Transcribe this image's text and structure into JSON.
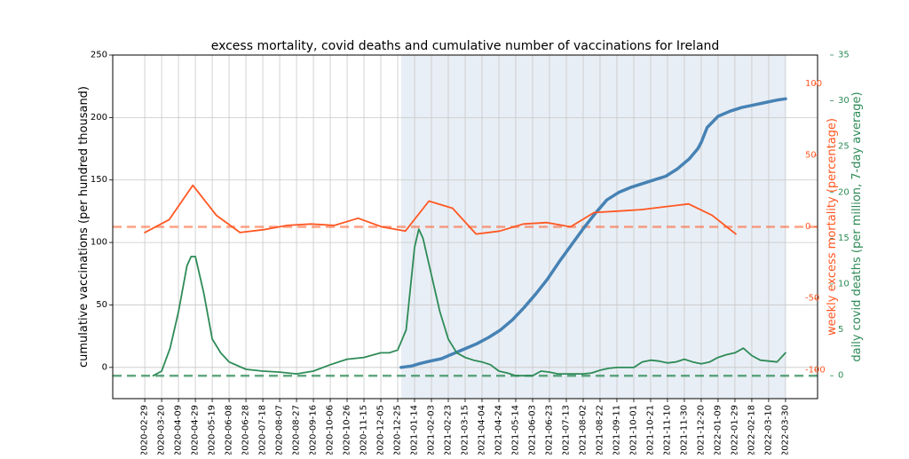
{
  "chart_data": {
    "type": "line",
    "title": "excess mortality, covid deaths and cumulative number of vaccinations for Ireland",
    "ylabel_left": "cumulative vaccinations (per hundred thousand)",
    "ylabel_right_1": "weekly excess mortality (percentage)",
    "ylabel_right_2": "daily covid deaths (per million, 7-day average)",
    "ylim_left": [
      -25,
      250
    ],
    "ylim_right_1": [
      -120,
      120
    ],
    "ylim_right_2": [
      -2.5,
      35
    ],
    "yticks_left": [
      "0",
      "50",
      "100",
      "150",
      "200",
      "250"
    ],
    "yticks_right_1": [
      "-100",
      "-50",
      "0",
      "50",
      "100"
    ],
    "yticks_right_2": [
      "0",
      "5",
      "10",
      "15",
      "20",
      "25",
      "30",
      "35"
    ],
    "x_dates": [
      "2020-02-29",
      "2020-03-20",
      "2020-04-09",
      "2020-04-29",
      "2020-05-19",
      "2020-06-08",
      "2020-06-28",
      "2020-07-18",
      "2020-08-07",
      "2020-08-27",
      "2020-09-16",
      "2020-10-06",
      "2020-10-26",
      "2020-11-15",
      "2020-12-05",
      "2020-12-25",
      "2021-01-14",
      "2021-02-03",
      "2021-02-23",
      "2021-03-15",
      "2021-04-04",
      "2021-04-24",
      "2021-05-14",
      "2021-06-03",
      "2021-06-23",
      "2021-07-13",
      "2021-08-02",
      "2021-08-22",
      "2021-09-11",
      "2021-10-01",
      "2021-10-21",
      "2021-11-10",
      "2021-11-30",
      "2021-12-20",
      "2022-01-09",
      "2022-01-29",
      "2022-02-18",
      "2022-03-10",
      "2022-03-30"
    ],
    "shaded_region": [
      "2020-12-29",
      "2022-03-30"
    ],
    "grid": true,
    "colors": {
      "vaccinations": "#4682b4",
      "excess_mortality": "#ff5722",
      "covid_deaths": "#2e8b57",
      "shade": "#e8eef5",
      "grid": "#c8c8c8"
    },
    "series": [
      {
        "axis": "left",
        "x": [
          "2020-12-29",
          "2021-01-10",
          "2021-01-20",
          "2021-02-01",
          "2021-02-15",
          "2021-03-01",
          "2021-03-15",
          "2021-03-29",
          "2021-04-12",
          "2021-04-26",
          "2021-05-10",
          "2021-05-24",
          "2021-06-07",
          "2021-06-21",
          "2021-07-05",
          "2021-07-19",
          "2021-08-02",
          "2021-08-16",
          "2021-08-30",
          "2021-09-13",
          "2021-09-27",
          "2021-10-11",
          "2021-10-25",
          "2021-11-08",
          "2021-11-22",
          "2021-12-06",
          "2021-12-16",
          "2021-12-20",
          "2021-12-27",
          "2022-01-09",
          "2022-01-23",
          "2022-02-06",
          "2022-02-20",
          "2022-03-06",
          "2022-03-20",
          "2022-03-30"
        ],
        "values": [
          0,
          1,
          3,
          5,
          7,
          11,
          15,
          19,
          24,
          30,
          38,
          48,
          59,
          71,
          85,
          98,
          111,
          123,
          134,
          140,
          144,
          147,
          150,
          153,
          159,
          167,
          175,
          180,
          192,
          201,
          205,
          208,
          210,
          212,
          214,
          215
        ]
      },
      {
        "axis": "right_1",
        "x": [
          "2020-02-29",
          "2020-03-29",
          "2020-04-26",
          "2020-05-24",
          "2020-06-21",
          "2020-07-19",
          "2020-08-16",
          "2020-09-13",
          "2020-10-11",
          "2020-11-08",
          "2020-12-06",
          "2021-01-03",
          "2021-01-31",
          "2021-02-28",
          "2021-03-28",
          "2021-04-25",
          "2021-05-23",
          "2021-06-20",
          "2021-07-18",
          "2021-08-15",
          "2021-09-12",
          "2021-10-10",
          "2021-11-07",
          "2021-12-05",
          "2022-01-02",
          "2022-01-30"
        ],
        "values": [
          -4,
          5,
          29,
          8,
          -4,
          -2,
          1,
          2,
          1,
          6,
          0,
          -3,
          18,
          13,
          -5,
          -3,
          2,
          3,
          0,
          10,
          11,
          12,
          14,
          16,
          8,
          -5
        ]
      },
      {
        "axis": "right_2",
        "x": [
          "2020-03-10",
          "2020-03-20",
          "2020-03-30",
          "2020-04-09",
          "2020-04-19",
          "2020-04-24",
          "2020-04-29",
          "2020-05-09",
          "2020-05-19",
          "2020-05-29",
          "2020-06-08",
          "2020-06-28",
          "2020-07-18",
          "2020-08-07",
          "2020-08-27",
          "2020-09-16",
          "2020-10-06",
          "2020-10-26",
          "2020-11-15",
          "2020-12-05",
          "2020-12-15",
          "2020-12-25",
          "2021-01-04",
          "2021-01-14",
          "2021-01-19",
          "2021-01-24",
          "2021-02-03",
          "2021-02-13",
          "2021-02-23",
          "2021-03-05",
          "2021-03-15",
          "2021-03-25",
          "2021-04-04",
          "2021-04-14",
          "2021-04-24",
          "2021-05-04",
          "2021-05-14",
          "2021-05-24",
          "2021-06-03",
          "2021-06-13",
          "2021-06-23",
          "2021-07-03",
          "2021-07-13",
          "2021-07-23",
          "2021-08-02",
          "2021-08-12",
          "2021-08-22",
          "2021-09-01",
          "2021-09-11",
          "2021-09-21",
          "2021-10-01",
          "2021-10-11",
          "2021-10-21",
          "2021-10-31",
          "2021-11-10",
          "2021-11-20",
          "2021-11-30",
          "2021-12-10",
          "2021-12-20",
          "2021-12-30",
          "2022-01-09",
          "2022-01-19",
          "2022-01-29",
          "2022-02-08",
          "2022-02-18",
          "2022-02-28",
          "2022-03-10",
          "2022-03-20",
          "2022-03-30"
        ],
        "values": [
          0,
          0.5,
          3,
          7,
          12,
          13,
          13,
          9,
          4,
          2.5,
          1.5,
          0.7,
          0.5,
          0.4,
          0.2,
          0.5,
          1.2,
          1.8,
          2,
          2.5,
          2.5,
          2.8,
          5,
          14,
          16,
          15,
          11,
          7,
          4,
          2.5,
          2,
          1.7,
          1.5,
          1.2,
          0.5,
          0.3,
          0,
          0,
          0,
          0.5,
          0.4,
          0.2,
          0.2,
          0.2,
          0.2,
          0.3,
          0.6,
          0.8,
          0.9,
          0.9,
          0.9,
          1.5,
          1.7,
          1.6,
          1.4,
          1.5,
          1.8,
          1.5,
          1.3,
          1.5,
          2,
          2.3,
          2.5,
          3,
          2.2,
          1.7,
          1.6,
          1.5,
          2.5
        ]
      }
    ]
  }
}
